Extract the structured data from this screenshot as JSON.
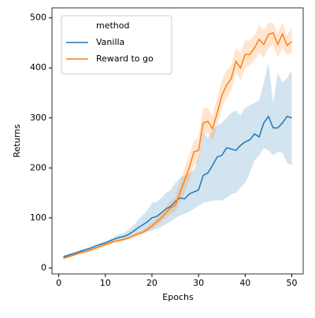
{
  "chart_data": {
    "type": "line",
    "xlabel": "Epochs",
    "ylabel": "Returns",
    "x": [
      1,
      2,
      3,
      4,
      5,
      6,
      7,
      8,
      9,
      10,
      11,
      12,
      13,
      14,
      15,
      16,
      17,
      18,
      19,
      20,
      21,
      22,
      23,
      24,
      25,
      26,
      27,
      28,
      29,
      30,
      31,
      32,
      33,
      34,
      35,
      36,
      37,
      38,
      39,
      40,
      41,
      42,
      43,
      44,
      45,
      46,
      47,
      48,
      49,
      50
    ],
    "xlim": [
      -1.45,
      52.45
    ],
    "xticks": [
      0,
      10,
      20,
      30,
      40,
      50
    ],
    "ylim": [
      -12,
      520
    ],
    "yticks": [
      0,
      100,
      200,
      300,
      400,
      500
    ],
    "legend_title": "method",
    "legend_position": "upper left",
    "series": [
      {
        "name": "Vanilla",
        "color": "#1f77b4",
        "values": [
          22,
          25,
          28,
          31,
          34,
          37,
          40,
          44,
          47,
          50,
          54,
          58,
          61,
          63,
          67,
          73,
          80,
          86,
          92,
          100,
          103,
          110,
          118,
          123,
          133,
          140,
          138,
          148,
          152,
          156,
          185,
          190,
          205,
          222,
          225,
          240,
          238,
          235,
          245,
          252,
          256,
          268,
          262,
          290,
          303,
          280,
          280,
          290,
          303,
          300
        ],
        "lower": [
          19,
          22,
          25,
          28,
          31,
          34,
          37,
          40,
          43,
          46,
          49,
          52,
          55,
          57,
          60,
          63,
          67,
          70,
          72,
          75,
          78,
          82,
          88,
          92,
          100,
          105,
          108,
          112,
          118,
          125,
          130,
          132,
          135,
          135,
          135,
          140,
          148,
          150,
          160,
          170,
          190,
          215,
          225,
          240,
          235,
          225,
          232,
          230,
          210,
          205
        ],
        "upper": [
          25,
          28,
          31,
          34,
          37,
          40,
          43,
          47,
          50,
          54,
          58,
          63,
          67,
          70,
          76,
          85,
          95,
          105,
          115,
          130,
          132,
          140,
          150,
          155,
          170,
          180,
          185,
          190,
          195,
          220,
          270,
          260,
          275,
          285,
          290,
          300,
          310,
          315,
          305,
          320,
          325,
          330,
          335,
          370,
          410,
          330,
          390,
          370,
          380,
          395
        ]
      },
      {
        "name": "Reward to go",
        "color": "#ff7f0e",
        "values": [
          19,
          22,
          25,
          28,
          31,
          33,
          36,
          40,
          43,
          47,
          50,
          53,
          55,
          57,
          60,
          64,
          68,
          71,
          77,
          84,
          92,
          100,
          110,
          120,
          125,
          150,
          175,
          200,
          232,
          235,
          290,
          293,
          278,
          310,
          345,
          365,
          378,
          413,
          400,
          427,
          427,
          440,
          457,
          447,
          467,
          470,
          447,
          468,
          445,
          453
        ],
        "lower": [
          17,
          20,
          23,
          26,
          29,
          31,
          34,
          37,
          40,
          44,
          47,
          50,
          52,
          54,
          57,
          60,
          64,
          67,
          72,
          78,
          85,
          92,
          100,
          108,
          112,
          130,
          150,
          175,
          205,
          210,
          265,
          270,
          255,
          285,
          320,
          340,
          355,
          390,
          375,
          400,
          405,
          415,
          430,
          420,
          440,
          445,
          420,
          440,
          425,
          430
        ],
        "upper": [
          21,
          24,
          27,
          30,
          33,
          35,
          38,
          43,
          46,
          50,
          53,
          56,
          58,
          60,
          63,
          68,
          72,
          76,
          83,
          92,
          100,
          110,
          122,
          135,
          140,
          170,
          200,
          225,
          255,
          260,
          320,
          320,
          305,
          340,
          375,
          395,
          405,
          440,
          430,
          455,
          455,
          465,
          485,
          475,
          490,
          490,
          470,
          490,
          465,
          480
        ]
      }
    ]
  }
}
